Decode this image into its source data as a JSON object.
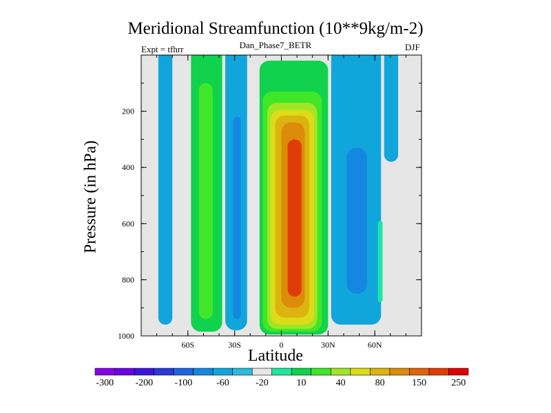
{
  "chart_data": {
    "type": "heatmap",
    "title": "Meridional Streamfunction (10**9kg/m-2)",
    "subtitle_left": "Expt = tfhrr",
    "subtitle_center": "Dan_Phase7_BETR",
    "subtitle_right": "DJF",
    "xlabel": "Latitude",
    "ylabel": "Pressure (in hPa)",
    "xlim": [
      -90,
      90
    ],
    "ylim": [
      1000,
      0
    ],
    "xticks": [
      {
        "value": -60,
        "label": "60S"
      },
      {
        "value": -30,
        "label": "30S"
      },
      {
        "value": 0,
        "label": "0"
      },
      {
        "value": 30,
        "label": "30N"
      },
      {
        "value": 60,
        "label": "60N"
      }
    ],
    "yticks": [
      {
        "value": 200,
        "label": "200"
      },
      {
        "value": 400,
        "label": "400"
      },
      {
        "value": 600,
        "label": "600"
      },
      {
        "value": 800,
        "label": "800"
      },
      {
        "value": 1000,
        "label": "1000"
      }
    ],
    "contour_levels": [
      -300,
      -200,
      -100,
      -60,
      -20,
      10,
      40,
      80,
      150,
      250
    ],
    "colorbar_labels": [
      "-300",
      "-200",
      "-100",
      "-60",
      "-20",
      "10",
      "40",
      "80",
      "150",
      "250"
    ],
    "colorbar_colors": [
      "#8a00e6",
      "#6a00e6",
      "#3c14d8",
      "#2a38d8",
      "#1e64e0",
      "#1488e0",
      "#10a6dc",
      "#28bcdc",
      "#e6e6e6",
      "#1ee6a0",
      "#10d24c",
      "#40e628",
      "#a0e628",
      "#dcdc18",
      "#dcb410",
      "#dc8c08",
      "#e06408",
      "#e03c08",
      "#e00000"
    ],
    "regions": [
      {
        "name": "sh-polar-cell",
        "lat": [
          -79,
          -70
        ],
        "p": [
          0,
          960
        ],
        "color": "#10a6dc"
      },
      {
        "name": "sh-ferrel-cell",
        "lat": [
          -58,
          -38
        ],
        "p": [
          0,
          985
        ],
        "color": "#10d24c"
      },
      {
        "name": "sh-ferrel-core",
        "lat": [
          -53,
          -44
        ],
        "p": [
          100,
          940
        ],
        "color": "#40e628"
      },
      {
        "name": "sh-subtropical-negative",
        "lat": [
          -36,
          -22
        ],
        "p": [
          0,
          980
        ],
        "color": "#10a6dc"
      },
      {
        "name": "sh-subtropical-negative-core",
        "lat": [
          -31,
          -26
        ],
        "p": [
          220,
          940
        ],
        "color": "#1488e0"
      },
      {
        "name": "hadley-cell-outer",
        "lat": [
          -14,
          30
        ],
        "p": [
          20,
          995
        ],
        "color": "#10d24c"
      },
      {
        "name": "hadley-cell-10",
        "lat": [
          -12,
          26
        ],
        "p": [
          130,
          985
        ],
        "color": "#40e628"
      },
      {
        "name": "hadley-cell-40",
        "lat": [
          -9,
          23
        ],
        "p": [
          170,
          975
        ],
        "color": "#a0e628"
      },
      {
        "name": "hadley-cell-80",
        "lat": [
          -7,
          21
        ],
        "p": [
          195,
          960
        ],
        "color": "#dcdc18"
      },
      {
        "name": "hadley-cell-150",
        "lat": [
          -4,
          18
        ],
        "p": [
          215,
          935
        ],
        "color": "#dcb410"
      },
      {
        "name": "hadley-cell-200",
        "lat": [
          0,
          15
        ],
        "p": [
          240,
          900
        ],
        "color": "#dc8c08"
      },
      {
        "name": "hadley-cell-core",
        "lat": [
          4,
          13
        ],
        "p": [
          300,
          860
        ],
        "color": "#e03c08"
      },
      {
        "name": "nh-subtropical-negative",
        "lat": [
          32,
          64
        ],
        "p": [
          0,
          960
        ],
        "color": "#10a6dc"
      },
      {
        "name": "nh-subtropical-negative-core",
        "lat": [
          42,
          55
        ],
        "p": [
          330,
          850
        ],
        "color": "#1488e0"
      },
      {
        "name": "nh-high-lat-positive",
        "lat": [
          62,
          65
        ],
        "p": [
          590,
          880
        ],
        "color": "#1ee6a0"
      },
      {
        "name": "nh-polar-negative",
        "lat": [
          66,
          75
        ],
        "p": [
          0,
          380
        ],
        "color": "#10a6dc"
      }
    ]
  }
}
